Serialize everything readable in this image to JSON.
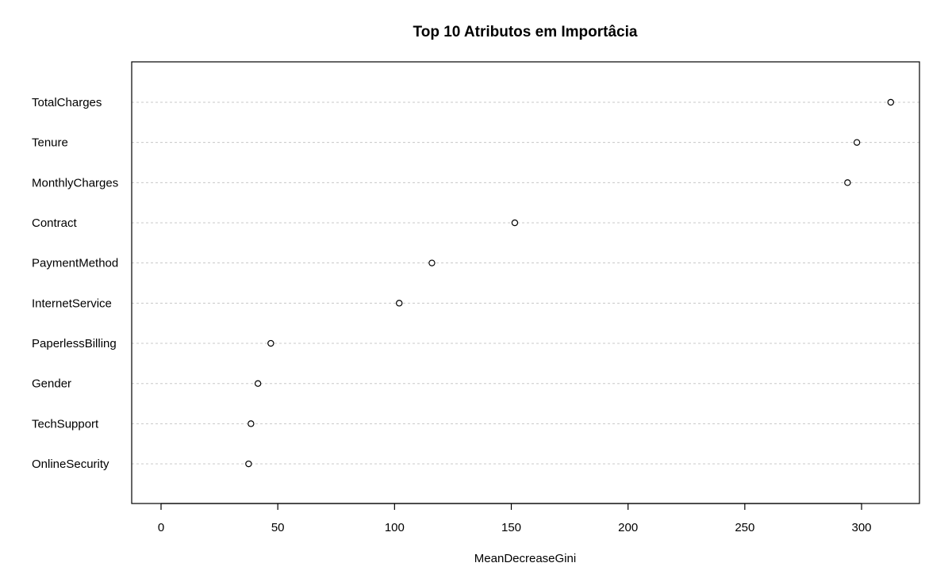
{
  "chart_data": {
    "type": "scatter",
    "title": "Top 10 Atributos em Importâcia",
    "xlabel": "MeanDecreaseGini",
    "ylabel": "",
    "categories": [
      "TotalCharges",
      "Tenure",
      "MonthlyCharges",
      "Contract",
      "PaymentMethod",
      "InternetService",
      "PaperlessBilling",
      "Gender",
      "TechSupport",
      "OnlineSecurity"
    ],
    "values": [
      312.5,
      298,
      294,
      151.5,
      116,
      102,
      47,
      41.5,
      38.5,
      37.5
    ],
    "xlim": [
      0,
      325
    ],
    "xticks": [
      0,
      50,
      100,
      150,
      200,
      250,
      300
    ],
    "grid": true,
    "marker": "open-circle"
  }
}
